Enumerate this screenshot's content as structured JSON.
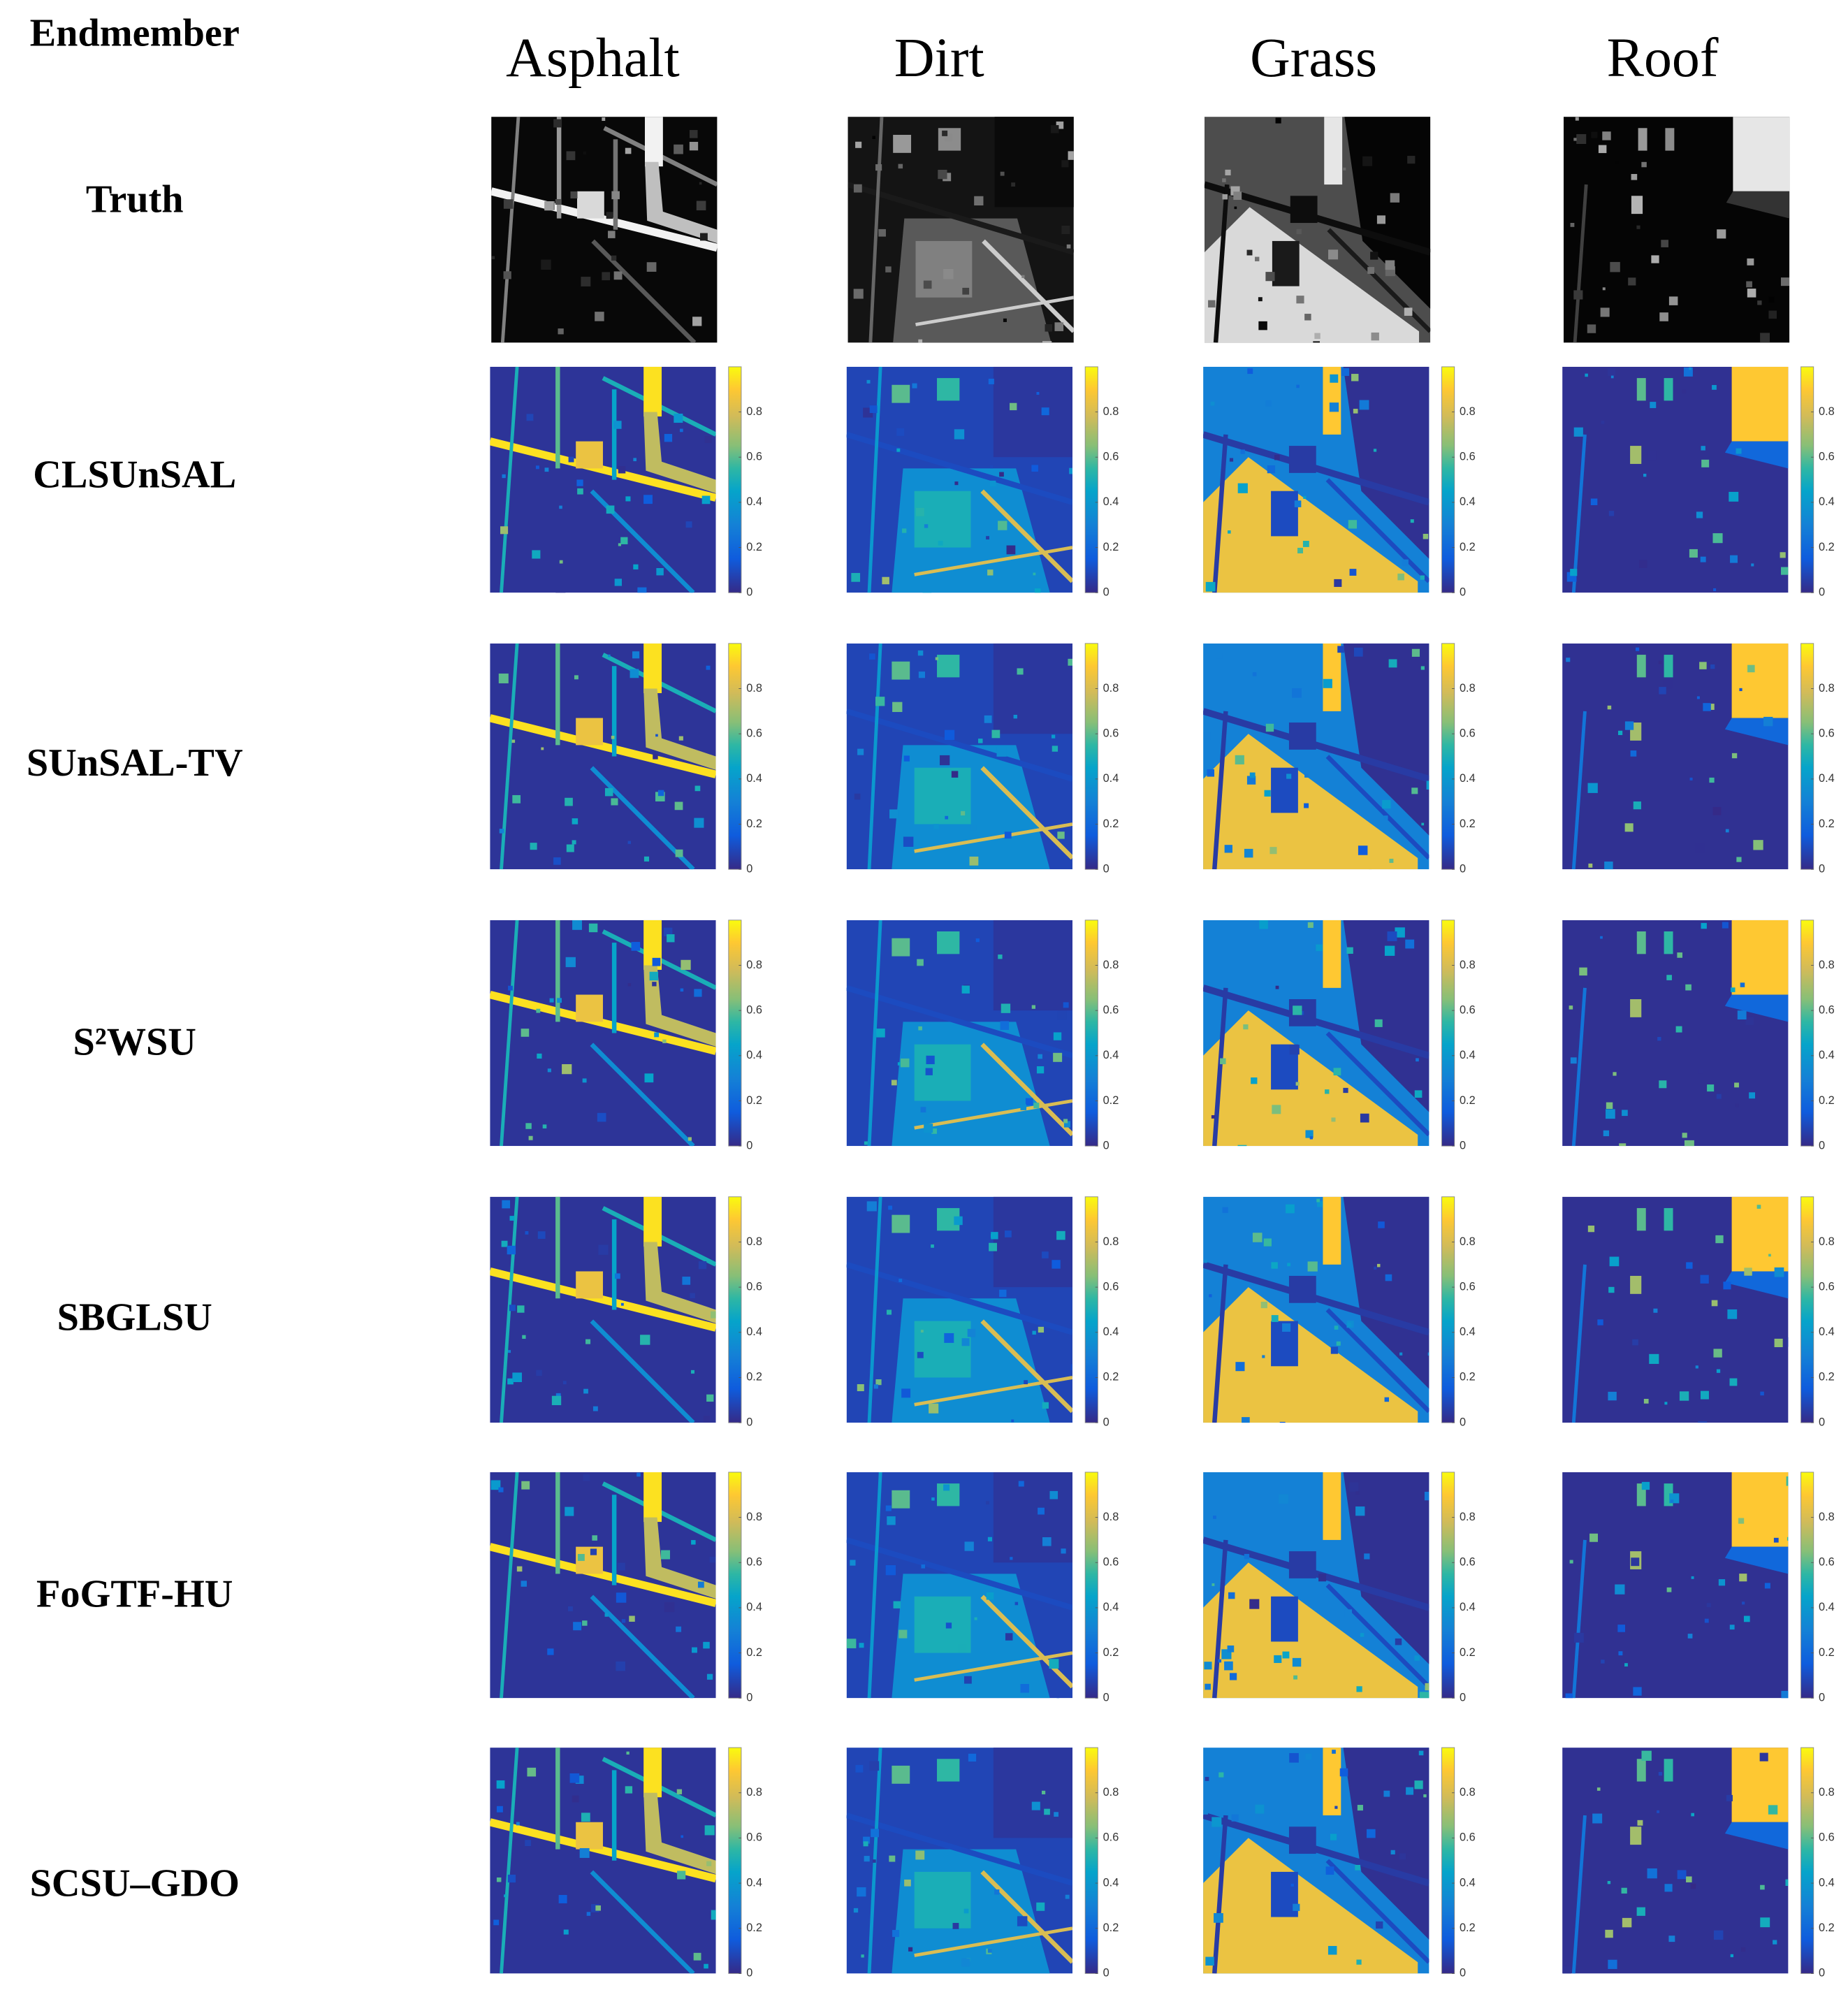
{
  "header": {
    "corner": "Endmember",
    "columns": [
      "Asphalt",
      "Dirt",
      "Grass",
      "Roof"
    ]
  },
  "rows": [
    {
      "label": "Truth",
      "colormap": "gray"
    },
    {
      "label": "CLSUnSAL",
      "colormap": "parula"
    },
    {
      "label": "SUnSAL-TV",
      "colormap": "parula"
    },
    {
      "label": "S²WSU",
      "colormap": "parula"
    },
    {
      "label": "SBGLSU",
      "colormap": "parula"
    },
    {
      "label": "FoGTF-HU",
      "colormap": "parula"
    },
    {
      "label": "SCSU–GDO",
      "colormap": "parula"
    }
  ],
  "colorbar_range": [
    0,
    1
  ],
  "colorbar_ticks": [
    0,
    0.2,
    0.4,
    0.6,
    0.8
  ]
}
